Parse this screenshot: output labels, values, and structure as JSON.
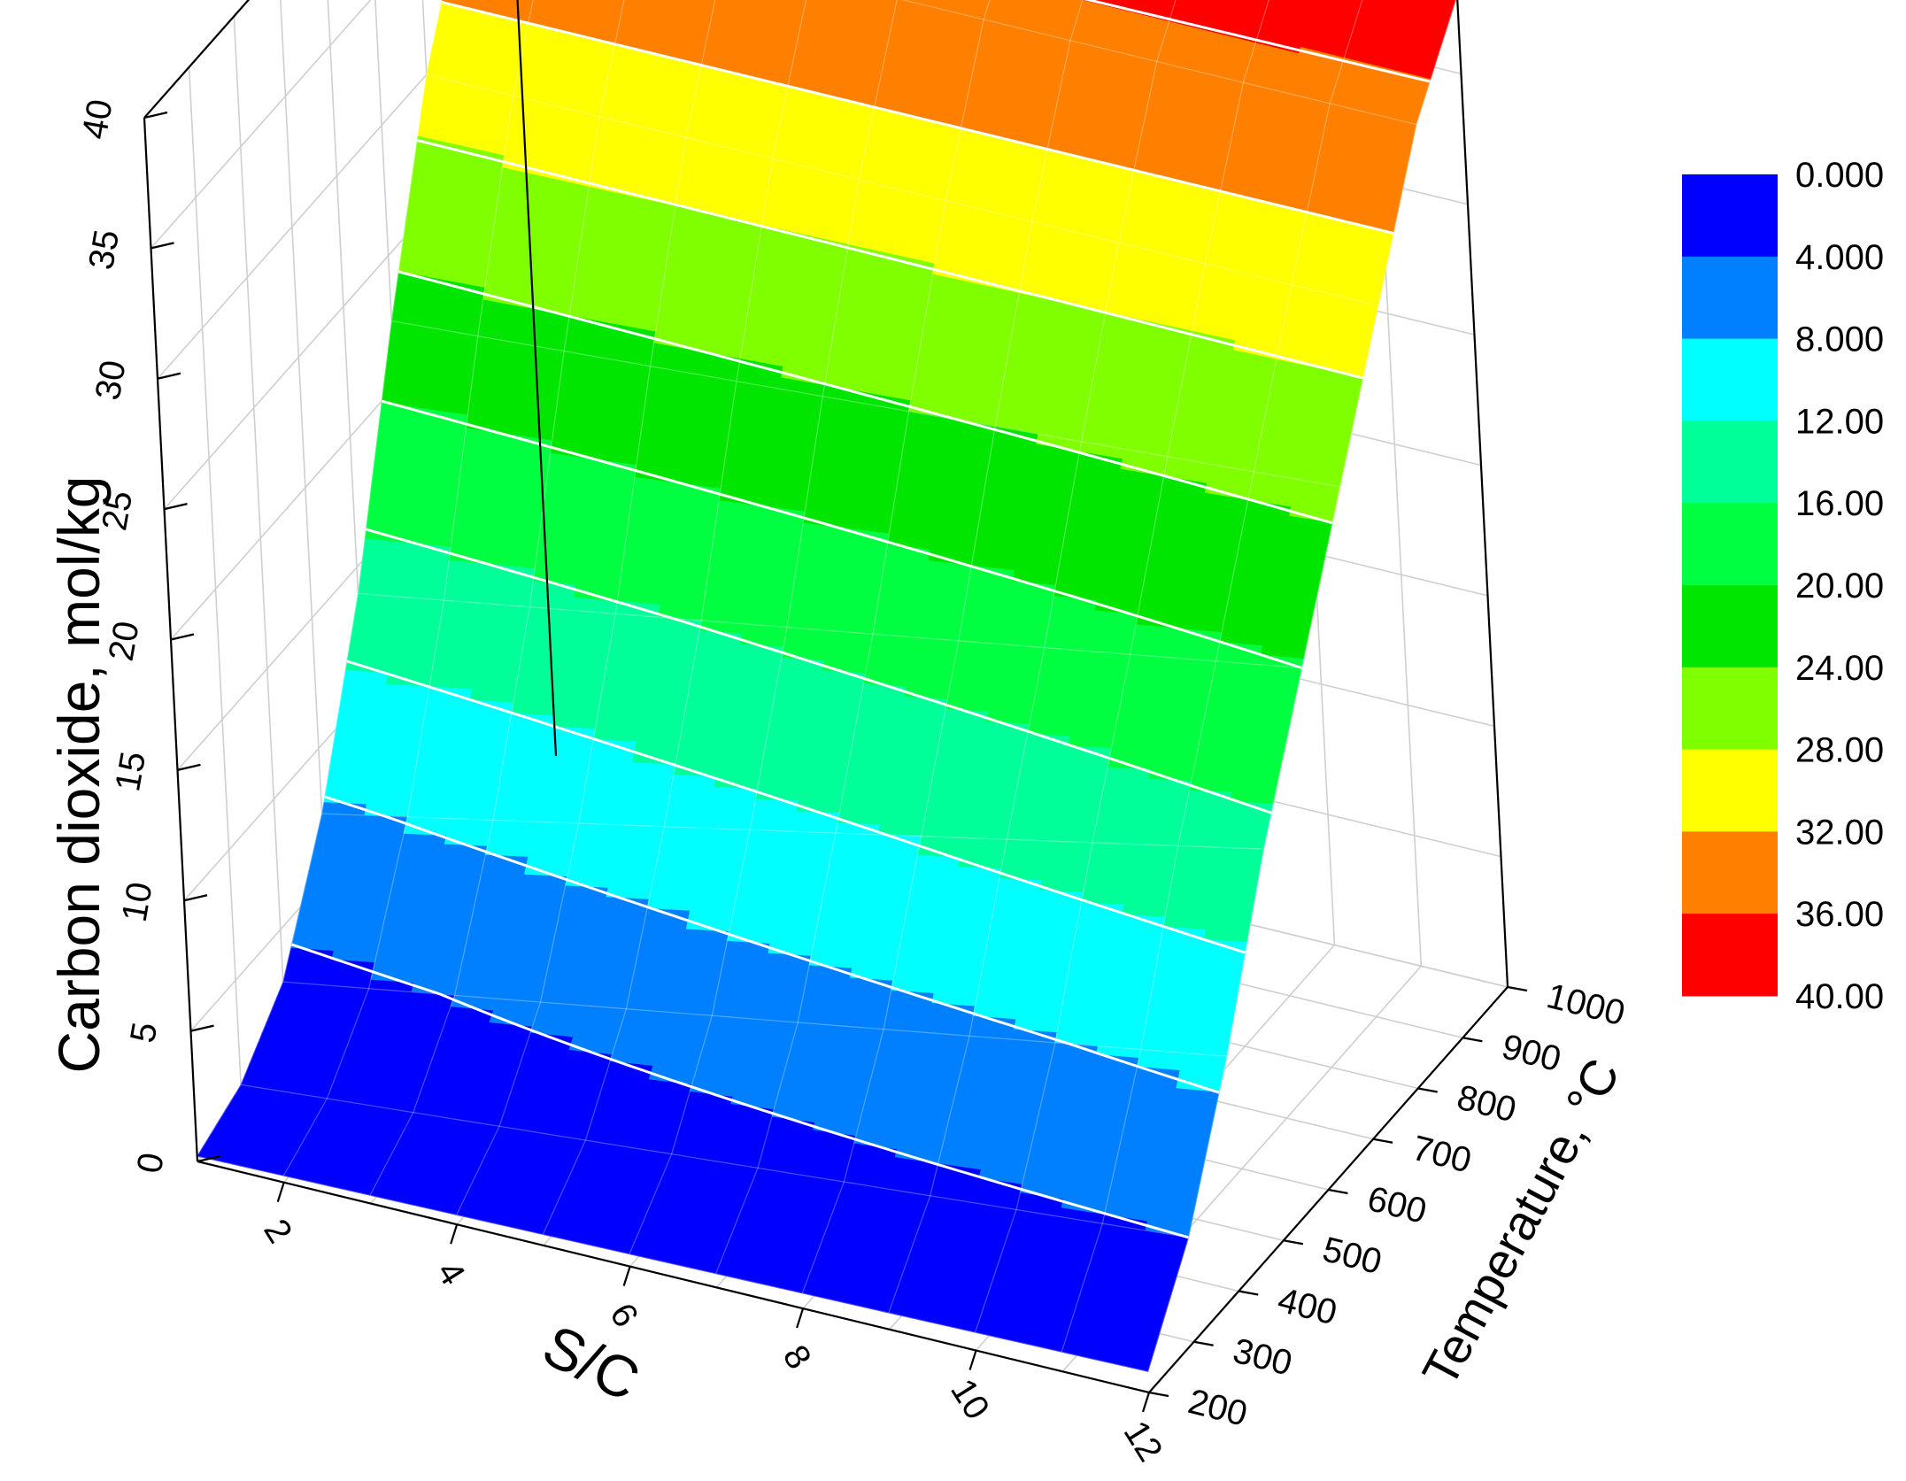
{
  "chart_data": {
    "type": "surface",
    "title": "",
    "x_axis": {
      "label": "S/C",
      "ticks": [
        "2",
        "4",
        "6",
        "8",
        "10",
        "12"
      ],
      "range": [
        1,
        12
      ]
    },
    "y_axis": {
      "label": "Temperature, °C",
      "ticks": [
        "200",
        "300",
        "400",
        "500",
        "600",
        "700",
        "800",
        "900",
        "1000"
      ],
      "range": [
        200,
        1000
      ]
    },
    "z_axis": {
      "label": "Carbon dioxide, mol/kg",
      "ticks": [
        "0",
        "5",
        "10",
        "15",
        "20",
        "25",
        "30",
        "35",
        "40"
      ],
      "range": [
        0,
        40
      ]
    },
    "grid": true,
    "colorbar": {
      "position": "right",
      "labels": [
        "0.000",
        "4.000",
        "8.000",
        "12.00",
        "16.00",
        "20.00",
        "24.00",
        "28.00",
        "32.00",
        "36.00",
        "40.00"
      ],
      "levels": [
        0,
        4,
        8,
        12,
        16,
        20,
        24,
        28,
        32,
        36,
        40
      ],
      "colors": [
        "#0000ff",
        "#0080ff",
        "#00ffff",
        "#00ff99",
        "#00ff40",
        "#00e600",
        "#80ff00",
        "#ffff00",
        "#ff8000",
        "#ff0000"
      ]
    },
    "surface_samples": {
      "temperature": [
        200,
        300,
        400,
        500,
        600,
        700,
        800,
        900,
        1000
      ],
      "sc": [
        1,
        12
      ],
      "co2_at_sc1": [
        0.2,
        1.0,
        3.0,
        7.5,
        14.0,
        22.5,
        30.0,
        35.0,
        38.5
      ],
      "co2_at_sc12": [
        0.8,
        4.0,
        9.0,
        15.0,
        20.0,
        25.0,
        30.0,
        35.0,
        38.0
      ]
    }
  }
}
